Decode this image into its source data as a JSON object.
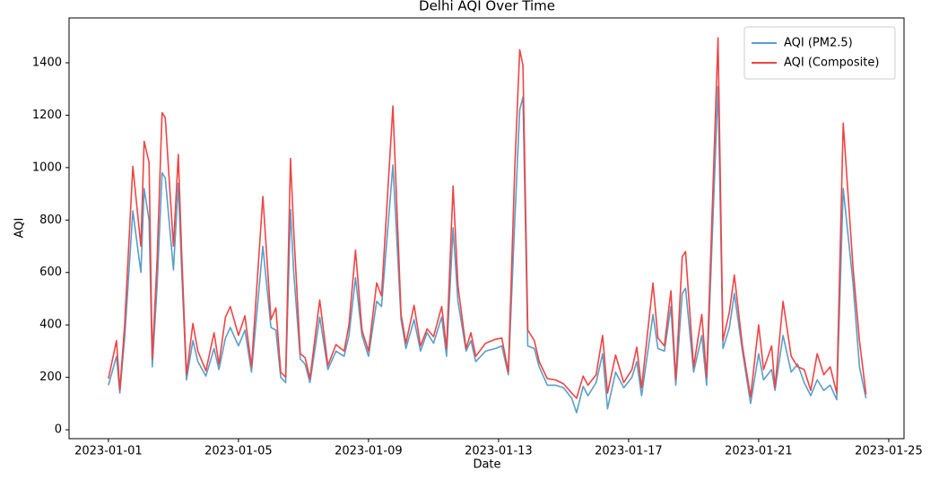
{
  "chart_data": {
    "type": "line",
    "title": "Delhi AQI Over Time",
    "x_label": "Date",
    "y_label": "AQI",
    "x": [
      0,
      0.25,
      0.35,
      0.5,
      0.75,
      1.0,
      1.1,
      1.25,
      1.35,
      1.5,
      1.65,
      1.75,
      2.0,
      2.15,
      2.25,
      2.4,
      2.6,
      2.75,
      3.0,
      3.25,
      3.4,
      3.6,
      3.75,
      4.0,
      4.2,
      4.4,
      4.75,
      5.0,
      5.15,
      5.3,
      5.45,
      5.6,
      5.7,
      5.9,
      6.05,
      6.2,
      6.5,
      6.75,
      7.0,
      7.25,
      7.4,
      7.6,
      7.8,
      8.0,
      8.25,
      8.4,
      8.75,
      9.0,
      9.15,
      9.4,
      9.6,
      9.8,
      10.0,
      10.25,
      10.4,
      10.6,
      10.75,
      11.0,
      11.15,
      11.3,
      11.6,
      11.9,
      12.1,
      12.3,
      12.5,
      12.65,
      12.75,
      12.9,
      13.1,
      13.25,
      13.5,
      13.75,
      14.0,
      14.25,
      14.4,
      14.6,
      14.75,
      15.0,
      15.2,
      15.35,
      15.6,
      15.85,
      16.1,
      16.25,
      16.4,
      16.75,
      16.9,
      17.1,
      17.3,
      17.45,
      17.65,
      17.75,
      18.0,
      18.25,
      18.4,
      18.75,
      18.9,
      19.1,
      19.25,
      19.5,
      19.75,
      20.0,
      20.15,
      20.4,
      20.5,
      20.75,
      21.0,
      21.2,
      21.4,
      21.6,
      21.8,
      22.0,
      22.2,
      22.4,
      22.6,
      22.9,
      23.1,
      23.3
    ],
    "series": [
      {
        "name": "AQI (PM2.5)",
        "color": "#5a9ec9",
        "values": [
          170,
          280,
          140,
          350,
          835,
          600,
          920,
          800,
          240,
          550,
          980,
          960,
          610,
          940,
          620,
          190,
          340,
          260,
          205,
          310,
          230,
          350,
          390,
          320,
          380,
          220,
          700,
          390,
          380,
          200,
          180,
          840,
          600,
          270,
          250,
          180,
          430,
          230,
          300,
          280,
          360,
          580,
          360,
          280,
          490,
          470,
          1010,
          420,
          310,
          420,
          300,
          370,
          330,
          430,
          280,
          770,
          490,
          300,
          340,
          260,
          300,
          310,
          320,
          210,
          800,
          1220,
          1270,
          320,
          310,
          240,
          170,
          170,
          160,
          120,
          65,
          165,
          130,
          180,
          290,
          80,
          220,
          160,
          200,
          260,
          130,
          440,
          310,
          300,
          470,
          170,
          520,
          540,
          220,
          360,
          170,
          1310,
          310,
          390,
          520,
          300,
          100,
          290,
          190,
          230,
          150,
          360,
          220,
          250,
          180,
          130,
          190,
          150,
          170,
          115,
          920,
          560,
          240,
          120
        ]
      },
      {
        "name": "AQI (Composite)",
        "color": "#f04444",
        "values": [
          195,
          340,
          150,
          400,
          1005,
          700,
          1100,
          1020,
          270,
          650,
          1210,
          1190,
          700,
          1050,
          690,
          210,
          405,
          300,
          225,
          370,
          250,
          430,
          470,
          360,
          435,
          240,
          890,
          420,
          465,
          220,
          200,
          1035,
          760,
          290,
          275,
          195,
          495,
          245,
          325,
          300,
          400,
          685,
          380,
          300,
          560,
          510,
          1235,
          440,
          330,
          475,
          320,
          385,
          355,
          470,
          310,
          930,
          550,
          310,
          370,
          280,
          330,
          345,
          350,
          220,
          1000,
          1450,
          1390,
          380,
          340,
          260,
          195,
          190,
          175,
          140,
          120,
          205,
          170,
          210,
          360,
          140,
          285,
          180,
          230,
          315,
          160,
          560,
          350,
          320,
          530,
          190,
          660,
          680,
          240,
          440,
          200,
          1495,
          340,
          450,
          590,
          320,
          125,
          400,
          230,
          320,
          160,
          490,
          280,
          240,
          230,
          150,
          290,
          210,
          240,
          140,
          1170,
          620,
          340,
          135
        ]
      }
    ],
    "xlim": [
      -1.21,
      24.47
    ],
    "xticks": [
      {
        "value": 0,
        "label": "2023-01-01"
      },
      {
        "value": 4,
        "label": "2023-01-05"
      },
      {
        "value": 8,
        "label": "2023-01-09"
      },
      {
        "value": 12,
        "label": "2023-01-13"
      },
      {
        "value": 16,
        "label": "2023-01-17"
      },
      {
        "value": 20,
        "label": "2023-01-21"
      },
      {
        "value": 24,
        "label": "2023-01-25"
      }
    ],
    "ylim": [
      -34,
      1571
    ],
    "yticks": [
      0,
      200,
      400,
      600,
      800,
      1000,
      1200,
      1400
    ],
    "legend": "upper right",
    "grid": false
  }
}
